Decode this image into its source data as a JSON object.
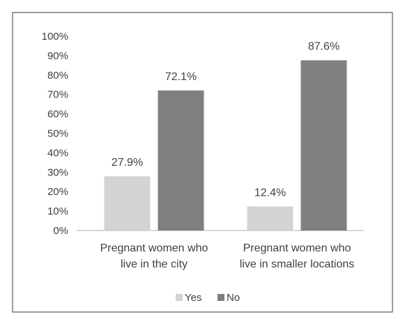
{
  "chart_data": {
    "type": "bar",
    "categories": [
      [
        "Pregnant women who",
        "live in the city"
      ],
      [
        "Pregnant women who",
        "live in smaller locations"
      ]
    ],
    "series": [
      {
        "name": "Yes",
        "values": [
          27.9,
          12.4
        ],
        "labels": [
          "27.9%",
          "12.4%"
        ],
        "color": "#d3d3d3"
      },
      {
        "name": "No",
        "values": [
          72.1,
          87.6
        ],
        "labels": [
          "72.1%",
          "87.6%"
        ],
        "color": "#7f7f7f"
      }
    ],
    "ylim": [
      0,
      100
    ],
    "y_ticks": [
      "0%",
      "10%",
      "20%",
      "30%",
      "40%",
      "50%",
      "60%",
      "70%",
      "80%",
      "90%",
      "100%"
    ],
    "grid": false,
    "legend_position": "bottom"
  }
}
